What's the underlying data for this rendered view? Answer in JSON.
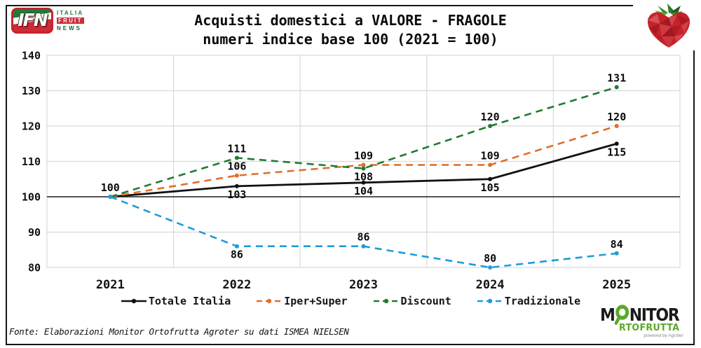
{
  "header": {
    "ifn_logo": {
      "acronym": "IFN",
      "line1": "ITALIA",
      "line2": "FRUIT",
      "line3": "NEWS"
    },
    "title_line1": "Acquisti domestici a VALORE - FRAGOLE",
    "title_line2": "numeri indice base 100 (2021 = 100)"
  },
  "chart_data": {
    "type": "line",
    "title": "Acquisti domestici a VALORE - FRAGOLE",
    "subtitle": "numeri indice base 100 (2021 = 100)",
    "x": [
      "2021",
      "2022",
      "2023",
      "2024",
      "2025"
    ],
    "ylim": [
      80,
      140
    ],
    "ytick_step": 10,
    "baseline_value": 100,
    "grid": true,
    "grid_color": "#D9D9D9",
    "legend_position": "bottom",
    "series": [
      {
        "name": "Totale Italia",
        "color": "#111111",
        "dash": "solid",
        "values": [
          100,
          103,
          104,
          105,
          115
        ],
        "label_pos": [
          "above",
          "below",
          "below",
          "below",
          "below"
        ]
      },
      {
        "name": "Iper+Super",
        "color": "#E1702A",
        "dash": "dashed",
        "values": [
          100,
          106,
          109,
          109,
          120
        ],
        "label_pos": [
          null,
          "above",
          "above",
          "above",
          "above"
        ]
      },
      {
        "name": "Discount",
        "color": "#1F7B33",
        "dash": "dashed",
        "values": [
          100,
          111,
          108,
          120,
          131
        ],
        "label_pos": [
          null,
          "above",
          "below",
          "above",
          "above"
        ]
      },
      {
        "name": "Tradizionale",
        "color": "#1F9CD8",
        "dash": "dashed",
        "values": [
          100,
          86,
          86,
          80,
          84
        ],
        "label_pos": [
          null,
          "below",
          "above",
          "above",
          "above"
        ]
      }
    ]
  },
  "footer": {
    "source": "Fonte: Elaborazioni Monitor Ortofrutta Agroter su dati ISMEA NIELSEN",
    "monitor_logo": {
      "m": "M",
      "nitor": "NITOR",
      "line2": "RTOFRUTTA",
      "powered": "powered by Agroter"
    }
  }
}
